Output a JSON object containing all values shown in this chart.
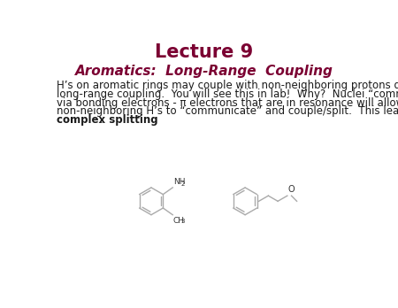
{
  "title": "Lecture 9",
  "subtitle": "Aromatics:  Long-Range  Coupling",
  "body_lines": [
    "H’s on aromatic rings may couple with non-neighboring protons due to",
    "long-range coupling.  You will see this in lab!  Why?  Nuclei “communicate”",
    "via bonding electrons - π electrons that are in resonance will allow",
    "non-neighboring H’s to “communicate” and couple/split.  This leads to"
  ],
  "bold_last": "complex splitting",
  "background_color": "#ffffff",
  "title_color": "#7b0032",
  "subtitle_color": "#7b0032",
  "body_color": "#1a1a1a",
  "title_fontsize": 15,
  "subtitle_fontsize": 11,
  "body_fontsize": 8.5,
  "structure_color": "#aaaaaa",
  "label_color": "#333333"
}
